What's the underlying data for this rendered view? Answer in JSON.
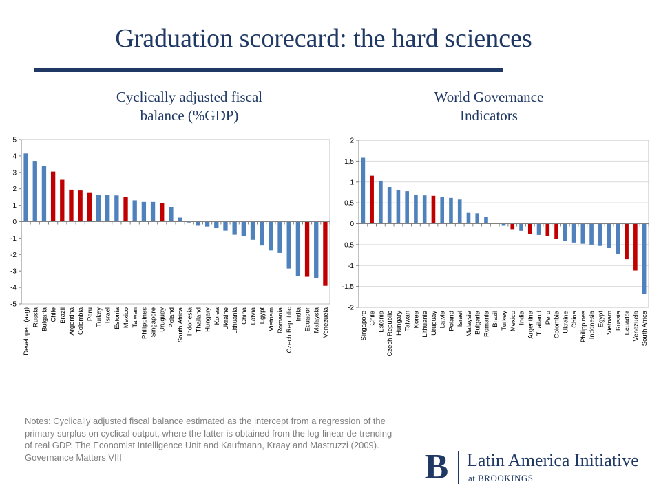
{
  "title": "Graduation scorecard: the hard sciences",
  "notes": "Notes:  Cyclically adjusted fiscal balance estimated as the intercept from a regression of the primary surplus on cyclical output, where the latter is obtained from the log-linear de-trending of real GDP. The Economist Intelligence Unit and  Kaufmann, Kraay and Mastruzzi (2009). Governance Matters VIII",
  "logo": {
    "mark": "B",
    "name": "Latin America Initiative",
    "sub": "at BROOKINGS"
  },
  "colors": {
    "blue": "#4f81bd",
    "red": "#c00000",
    "title": "#1f3864"
  },
  "chart_data": [
    {
      "type": "bar",
      "title": "Cyclically adjusted fiscal balance (%GDP)",
      "title_lines": [
        "Cyclically adjusted fiscal",
        "balance (%GDP)"
      ],
      "ylim": [
        -5,
        5
      ],
      "yticks": [
        5,
        4,
        3,
        2,
        1,
        0,
        -1,
        -2,
        -3,
        -4,
        -5
      ],
      "ytick_labels": [
        "5",
        "4",
        "3",
        "2",
        "1",
        "0",
        "-1",
        "-2",
        "-3",
        "-4",
        "-5"
      ],
      "grid": false,
      "categories": [
        "Developed (avg)",
        "Russia",
        "Bulgaria",
        "Chile",
        "Brazil",
        "Argentina",
        "Colombia",
        "Peru",
        "Turkey",
        "Israel",
        "Estonia",
        "Mexico",
        "Taiwan",
        "Philippines",
        "Singapore",
        "Uruguay",
        "Poland",
        "South Africa",
        "Indonesia",
        "Thailand",
        "Hungary",
        "Korea",
        "Ukraine",
        "Lithuania",
        "China",
        "Latvia",
        "Egypt",
        "Vietnam",
        "Romania",
        "Czech Republic",
        "India",
        "Ecuador",
        "Malaysia",
        "Venezuela"
      ],
      "values": [
        4.15,
        3.7,
        3.4,
        3.05,
        2.55,
        1.95,
        1.9,
        1.75,
        1.65,
        1.65,
        1.6,
        1.5,
        1.3,
        1.2,
        1.2,
        1.15,
        0.9,
        0.25,
        -0.05,
        -0.25,
        -0.3,
        -0.4,
        -0.55,
        -0.8,
        -0.9,
        -1.1,
        -1.45,
        -1.75,
        -1.9,
        -2.85,
        -3.3,
        -3.35,
        -3.45,
        -3.9
      ],
      "highlight": [
        "Chile",
        "Brazil",
        "Argentina",
        "Colombia",
        "Peru",
        "Mexico",
        "Uruguay",
        "Ecuador",
        "Venezuela"
      ]
    },
    {
      "type": "bar",
      "title": "World Governance Indicators",
      "title_lines": [
        "World Governance",
        "Indicators"
      ],
      "ylim": [
        -2,
        2
      ],
      "yticks": [
        2,
        1.5,
        1,
        0.5,
        0,
        -0.5,
        -1,
        -1.5,
        -2
      ],
      "ytick_labels": [
        "2",
        "1,5",
        "1",
        "0,5",
        "0",
        "-0,5",
        "-1",
        "-1,5",
        "-2"
      ],
      "grid": true,
      "categories": [
        "Singapore",
        "Chile",
        "Estonia",
        "Czech Republic",
        "Hungary",
        "Taiwan",
        "Korea",
        "Lithuania",
        "Uruguay",
        "Latvia",
        "Poland",
        "Israel",
        "Malaysia",
        "Bulgaria",
        "Romania",
        "Brazil",
        "Turkey",
        "Mexico",
        "India",
        "Argentina",
        "Thailand",
        "Peru",
        "Colombia",
        "Ukraine",
        "China",
        "Philippines",
        "Indonesia",
        "Egypt",
        "Vietnam",
        "Russia",
        "Ecuador",
        "Venezuela",
        "South Africa"
      ],
      "values": [
        1.58,
        1.15,
        1.03,
        0.88,
        0.8,
        0.78,
        0.7,
        0.68,
        0.67,
        0.65,
        0.62,
        0.58,
        0.26,
        0.25,
        0.17,
        0.02,
        -0.05,
        -0.13,
        -0.17,
        -0.25,
        -0.27,
        -0.3,
        -0.37,
        -0.42,
        -0.45,
        -0.48,
        -0.5,
        -0.53,
        -0.57,
        -0.72,
        -0.85,
        -1.12,
        -1.68
      ],
      "highlight": [
        "Chile",
        "Uruguay",
        "Brazil",
        "Mexico",
        "Argentina",
        "Peru",
        "Colombia",
        "Ecuador",
        "Venezuela"
      ]
    }
  ]
}
